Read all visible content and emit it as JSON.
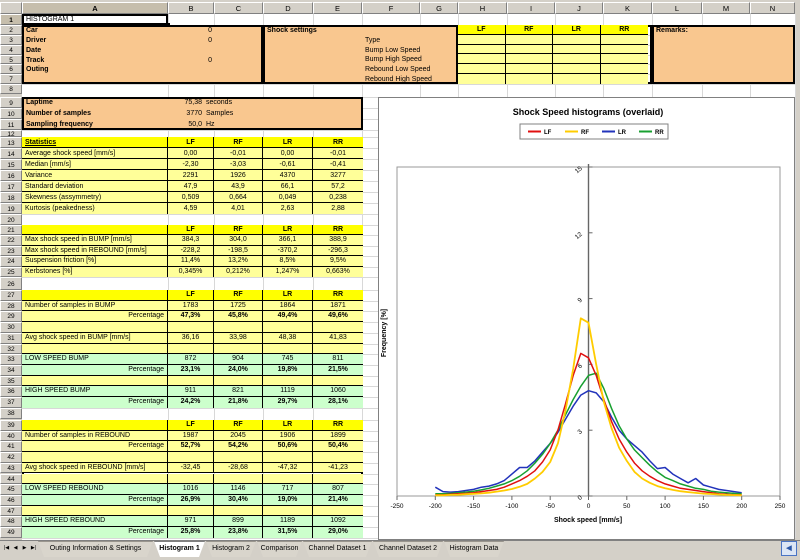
{
  "selection": {
    "cell": "A1",
    "text": "HISTOGRAM 1"
  },
  "columns": [
    "A",
    "B",
    "C",
    "D",
    "E",
    "F",
    "G",
    "H",
    "I",
    "J",
    "K",
    "L",
    "M",
    "N"
  ],
  "corners": [
    "LF",
    "RF",
    "LR",
    "RR"
  ],
  "colors": {
    "band_orange": "#f9c78f",
    "header_yellow": "#ffff00",
    "cell_yellow": "#ffff99",
    "cell_green": "#ccffcc",
    "grid_line": "#d8d8d8",
    "chrome": "#d4d0c8",
    "lf": "#e01010",
    "rf": "#ffcc00",
    "lr": "#2233bb",
    "rr": "#18a030"
  },
  "info": {
    "fields": [
      {
        "label": "Car",
        "value": "0"
      },
      {
        "label": "Driver",
        "value": "0"
      },
      {
        "label": "Date",
        "value": ""
      },
      {
        "label": "Track",
        "value": "0"
      },
      {
        "label": "Outing",
        "value": ""
      }
    ],
    "shock": {
      "title": "Shock settings",
      "params": [
        "Type",
        "Bump Low Speed",
        "Bump High Speed",
        "Rebound Low Speed",
        "Rebound High Speed"
      ]
    },
    "remarks_label": "Remarks:"
  },
  "summary": [
    {
      "label": "Laptime",
      "value": "75,38",
      "unit": "seconds"
    },
    {
      "label": "Number of samples",
      "value": "3770",
      "unit": "Samples"
    },
    {
      "label": "Sampling frequency",
      "value": "50,0",
      "unit": "Hz"
    }
  ],
  "stats": {
    "title": "Statistics",
    "rows": [
      {
        "label": "Average shock speed [mm/s]",
        "values": [
          "0,00",
          "-0,01",
          "0,00",
          "-0,01"
        ],
        "style": "plain"
      },
      {
        "label": "Median [mm/s]",
        "values": [
          "-2,30",
          "-3,03",
          "-0,61",
          "-0,41"
        ],
        "style": "plain"
      },
      {
        "label": "Variance",
        "values": [
          "2291",
          "1926",
          "4370",
          "3277"
        ],
        "style": "plain"
      },
      {
        "label": "Standard deviation",
        "values": [
          "47,9",
          "43,9",
          "66,1",
          "57,2"
        ],
        "style": "plain"
      },
      {
        "label": "Skewness (assymmetry)",
        "values": [
          "0,509",
          "0,664",
          "0,049",
          "0,238"
        ],
        "style": "plain"
      },
      {
        "label": "Kurtosis (peakedness)",
        "values": [
          "4,59",
          "4,01",
          "2,63",
          "2,88"
        ],
        "style": "plain"
      }
    ]
  },
  "maxspeeds": {
    "rows": [
      {
        "label": "Max shock speed in BUMP [mm/s]",
        "values": [
          "384,3",
          "304,0",
          "366,1",
          "388,9"
        ],
        "style": "plain"
      },
      {
        "label": "Max shock speed in REBOUND [mm/s]",
        "values": [
          "-228,2",
          "-198,5",
          "-370,2",
          "-296,3"
        ],
        "style": "plain"
      },
      {
        "label": "Suspension friction [%]",
        "values": [
          "11,4%",
          "13,2%",
          "8,5%",
          "9,5%"
        ],
        "style": "plain"
      },
      {
        "label": "Kerbstones [%]",
        "values": [
          "0,345%",
          "0,212%",
          "1,247%",
          "0,663%"
        ],
        "style": "plain"
      }
    ]
  },
  "bump": {
    "rows": [
      {
        "label": "Number of samples in BUMP",
        "values": [
          "1783",
          "1725",
          "1864",
          "1871"
        ],
        "style": "plain"
      },
      {
        "label": "Percentage",
        "values": [
          "47,3%",
          "45,8%",
          "49,4%",
          "49,6%"
        ],
        "style": "pct"
      },
      {
        "label": "",
        "values": [
          "",
          "",
          "",
          ""
        ],
        "style": "blank"
      },
      {
        "label": "Avg shock speed in BUMP [mm/s]",
        "values": [
          "36,16",
          "33,98",
          "48,38",
          "41,83"
        ],
        "style": "plain"
      },
      {
        "label": "",
        "values": [
          "",
          "",
          "",
          ""
        ],
        "style": "blank"
      },
      {
        "label": "LOW SPEED BUMP",
        "values": [
          "872",
          "904",
          "745",
          "811"
        ],
        "style": "green"
      },
      {
        "label": "Percentage",
        "values": [
          "23,1%",
          "24,0%",
          "19,8%",
          "21,5%"
        ],
        "style": "greenpct"
      },
      {
        "label": "",
        "values": [
          "",
          "",
          "",
          ""
        ],
        "style": "blank"
      },
      {
        "label": "HIGH SPEED BUMP",
        "values": [
          "911",
          "821",
          "1119",
          "1060"
        ],
        "style": "green"
      },
      {
        "label": "Percentage",
        "values": [
          "24,2%",
          "21,8%",
          "29,7%",
          "28,1%"
        ],
        "style": "greenpct"
      }
    ]
  },
  "rebound": {
    "rows": [
      {
        "label": "Number of samples in REBOUND",
        "values": [
          "1987",
          "2045",
          "1906",
          "1899"
        ],
        "style": "plain"
      },
      {
        "label": "Percentage",
        "values": [
          "52,7%",
          "54,2%",
          "50,6%",
          "50,4%"
        ],
        "style": "pct"
      },
      {
        "label": "",
        "values": [
          "",
          "",
          "",
          ""
        ],
        "style": "blank"
      },
      {
        "label": "Avg shock speed in REBOUND [mm/s]",
        "values": [
          "-32,45",
          "-28,68",
          "-47,32",
          "-41,23"
        ],
        "style": "plain"
      },
      {
        "label": "",
        "values": [
          "",
          "",
          "",
          ""
        ],
        "style": "blank"
      },
      {
        "label": "LOW SPEED REBOUND",
        "values": [
          "1016",
          "1146",
          "717",
          "807"
        ],
        "style": "green"
      },
      {
        "label": "Percentage",
        "values": [
          "26,9%",
          "30,4%",
          "19,0%",
          "21,4%"
        ],
        "style": "greenpct"
      },
      {
        "label": "",
        "values": [
          "",
          "",
          "",
          ""
        ],
        "style": "blank"
      },
      {
        "label": "HIGH SPEED REBOUND",
        "values": [
          "971",
          "899",
          "1189",
          "1092"
        ],
        "style": "green"
      },
      {
        "label": "Percentage",
        "values": [
          "25,8%",
          "23,8%",
          "31,5%",
          "29,0%"
        ],
        "style": "greenpct"
      }
    ]
  },
  "chart_data": {
    "type": "line",
    "title": "Shock Speed histograms (overlaid)",
    "xlabel": "Shock speed [mm/s]",
    "ylabel": "Frequency [%]",
    "xlim": [
      -250,
      250
    ],
    "ylim": [
      0,
      15
    ],
    "xticks": [
      -250,
      -200,
      -150,
      -100,
      -50,
      0,
      50,
      100,
      150,
      200,
      250
    ],
    "yticks": [
      0,
      3,
      6,
      9,
      12,
      15
    ],
    "grid": false,
    "legend_position": "top",
    "x": [
      -200,
      -190,
      -180,
      -170,
      -160,
      -150,
      -140,
      -130,
      -120,
      -110,
      -100,
      -90,
      -80,
      -70,
      -60,
      -50,
      -40,
      -30,
      -20,
      -10,
      0,
      10,
      20,
      30,
      40,
      50,
      60,
      70,
      80,
      90,
      100,
      110,
      120,
      130,
      140,
      150,
      160,
      170,
      180,
      190,
      200
    ],
    "series": [
      {
        "name": "LF",
        "color": "#e01010",
        "values": [
          0.05,
          0.05,
          0.08,
          0.1,
          0.12,
          0.15,
          0.2,
          0.25,
          0.3,
          0.4,
          0.55,
          0.7,
          0.9,
          1.15,
          1.55,
          2.1,
          3.0,
          4.2,
          5.5,
          6.5,
          6.3,
          5.5,
          4.4,
          3.4,
          2.6,
          2.0,
          1.5,
          1.15,
          0.9,
          0.7,
          0.55,
          0.45,
          0.35,
          0.3,
          0.25,
          0.2,
          0.15,
          0.1,
          0.08,
          0.05,
          0.05
        ]
      },
      {
        "name": "RF",
        "color": "#ffcc00",
        "values": [
          0.03,
          0.03,
          0.05,
          0.06,
          0.08,
          0.1,
          0.12,
          0.15,
          0.2,
          0.25,
          0.32,
          0.42,
          0.55,
          0.8,
          1.1,
          1.55,
          2.4,
          3.9,
          5.8,
          8.1,
          7.9,
          6.0,
          4.3,
          3.1,
          2.2,
          1.6,
          1.1,
          0.8,
          0.6,
          0.45,
          0.35,
          0.28,
          0.22,
          0.18,
          0.14,
          0.11,
          0.09,
          0.07,
          0.05,
          0.04,
          0.03
        ]
      },
      {
        "name": "LR",
        "color": "#2233bb",
        "values": [
          0.4,
          0.2,
          0.18,
          0.2,
          0.25,
          0.3,
          0.4,
          0.45,
          0.55,
          0.7,
          1.0,
          1.3,
          1.3,
          1.6,
          2.0,
          2.4,
          2.9,
          3.5,
          4.1,
          4.6,
          4.8,
          4.7,
          4.3,
          3.6,
          3.0,
          2.6,
          2.3,
          2.0,
          1.6,
          1.25,
          1.3,
          1.0,
          0.8,
          0.6,
          0.8,
          0.5,
          0.4,
          0.3,
          0.25,
          0.2,
          0.15
        ]
      },
      {
        "name": "RR",
        "color": "#18a030",
        "values": [
          0.1,
          0.1,
          0.12,
          0.15,
          0.18,
          0.22,
          0.28,
          0.35,
          0.45,
          0.55,
          0.7,
          0.9,
          1.15,
          1.5,
          1.9,
          2.4,
          3.0,
          3.7,
          4.4,
          5.0,
          5.5,
          5.6,
          4.9,
          4.0,
          3.2,
          2.6,
          2.1,
          1.75,
          1.4,
          1.1,
          0.85,
          0.7,
          0.55,
          0.45,
          0.35,
          0.3,
          0.22,
          0.18,
          0.15,
          0.12,
          0.1
        ]
      }
    ]
  },
  "tabs": {
    "nav": [
      "|◀",
      "◀",
      "▶",
      "▶|"
    ],
    "items": [
      "Outing Information & Settings",
      "Histogram 1",
      "Histogram 2",
      "Comparison",
      "Channel Dataset 1",
      "Channel Dataset 2",
      "Histogram Data"
    ],
    "active_index": 1,
    "scroll_icon": "◀"
  }
}
